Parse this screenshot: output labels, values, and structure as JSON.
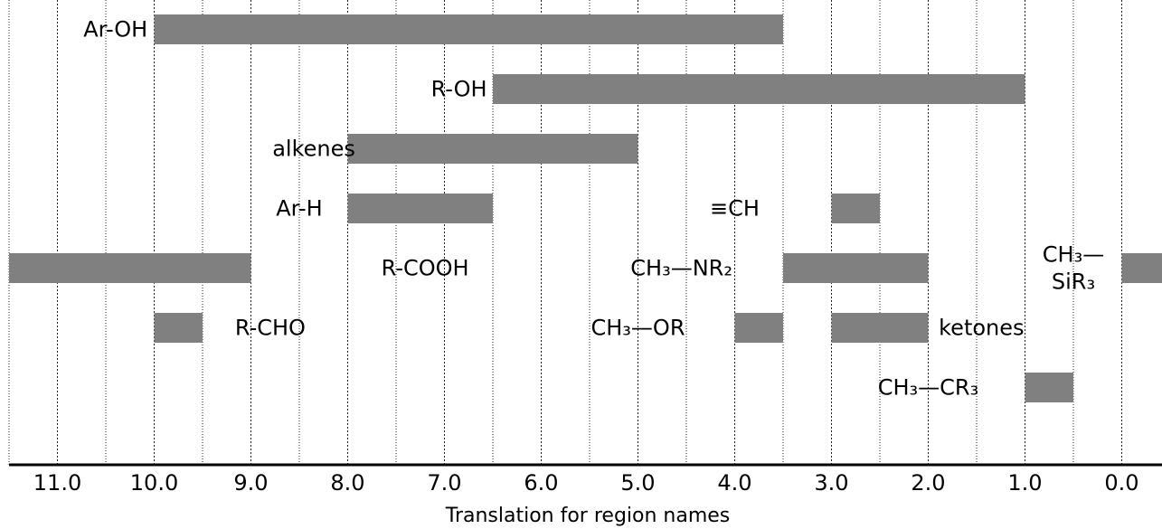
{
  "chart_data": {
    "type": "bar",
    "orientation": "horizontal-range",
    "title": "",
    "xlabel": "Translation for region names",
    "xlim": [
      11.5,
      -0.5
    ],
    "x_reversed": true,
    "grid": true,
    "bar_color": "#808080",
    "ticks": [
      "11.0",
      "10.0",
      "9.0",
      "8.0",
      "7.0",
      "6.0",
      "5.0",
      "4.0",
      "3.0",
      "2.0",
      "1.0",
      "0.0"
    ],
    "tick_values": [
      11,
      10,
      9,
      8,
      7,
      6,
      5,
      4,
      3,
      2,
      1,
      0
    ],
    "rows": [
      {
        "bars": [
          [
            10.0,
            3.5
          ]
        ]
      },
      {
        "bars": [
          [
            6.5,
            1.0
          ]
        ]
      },
      {
        "bars": [
          [
            8.0,
            5.0
          ]
        ]
      },
      {
        "bars": [
          [
            8.0,
            6.5
          ],
          [
            3.0,
            2.5
          ]
        ]
      },
      {
        "bars": [
          [
            11.5,
            9.0
          ],
          [
            3.5,
            2.0
          ],
          [
            0.0,
            -0.5
          ]
        ]
      },
      {
        "bars": [
          [
            10.0,
            9.5
          ],
          [
            4.0,
            3.5
          ],
          [
            3.0,
            2.0
          ]
        ]
      },
      {
        "bars": [
          [
            1.0,
            0.5
          ]
        ]
      }
    ],
    "labels": [
      {
        "row": 0,
        "x": 10.4,
        "lines": [
          "Ar-OH"
        ]
      },
      {
        "row": 1,
        "x": 6.85,
        "lines": [
          "R-OH"
        ]
      },
      {
        "row": 2,
        "x": 8.35,
        "lines": [
          "alkenes"
        ]
      },
      {
        "row": 3,
        "x": 8.5,
        "lines": [
          "Ar-H"
        ]
      },
      {
        "row": 3,
        "x": 4.0,
        "lines": [
          "≡CH"
        ]
      },
      {
        "row": 4,
        "x": 7.2,
        "lines": [
          "R-COOH"
        ]
      },
      {
        "row": 4,
        "x": 4.55,
        "lines": [
          "CH₃—NR₂"
        ]
      },
      {
        "row": 4,
        "x": 0.5,
        "lines": [
          "CH₃—",
          "SiR₃"
        ]
      },
      {
        "row": 5,
        "x": 8.8,
        "lines": [
          "R-CHO"
        ]
      },
      {
        "row": 5,
        "x": 5.0,
        "lines": [
          "CH₃—OR"
        ]
      },
      {
        "row": 5,
        "x": 1.45,
        "lines": [
          "ketones"
        ]
      },
      {
        "row": 6,
        "x": 2.0,
        "lines": [
          "CH₃—CR₃"
        ]
      }
    ]
  }
}
